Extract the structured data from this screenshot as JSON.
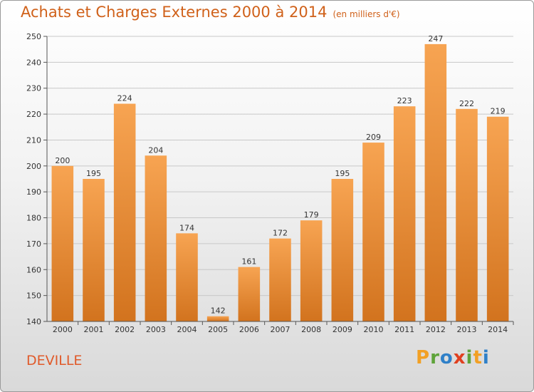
{
  "title": "Achats et Charges Externes 2000 à 2014",
  "unit_label": "(en milliers d'€)",
  "commune": "DEVILLE",
  "logo": {
    "letters": [
      "P",
      "r",
      "o",
      "x",
      "i",
      "t",
      "i"
    ],
    "colors": [
      "#f2a024",
      "#5ea33a",
      "#2f80c8",
      "#e0401f",
      "#5ea33a",
      "#f2a024",
      "#2f80c8"
    ]
  },
  "colors": {
    "bar_top": "#f7a452",
    "bar_bottom": "#d2731e",
    "title": "#d0611a"
  },
  "chart_data": {
    "type": "bar",
    "categories": [
      "2000",
      "2001",
      "2002",
      "2003",
      "2004",
      "2005",
      "2006",
      "2007",
      "2008",
      "2009",
      "2010",
      "2011",
      "2012",
      "2013",
      "2014"
    ],
    "values": [
      200,
      195,
      224,
      204,
      174,
      142,
      161,
      172,
      179,
      195,
      209,
      223,
      247,
      222,
      219
    ],
    "ylim": [
      140,
      250
    ],
    "yticks": [
      140,
      150,
      160,
      170,
      180,
      190,
      200,
      210,
      220,
      230,
      240,
      250
    ],
    "grid": true,
    "title": "Achats et Charges Externes 2000 à 2014",
    "xlabel": "",
    "ylabel": ""
  }
}
